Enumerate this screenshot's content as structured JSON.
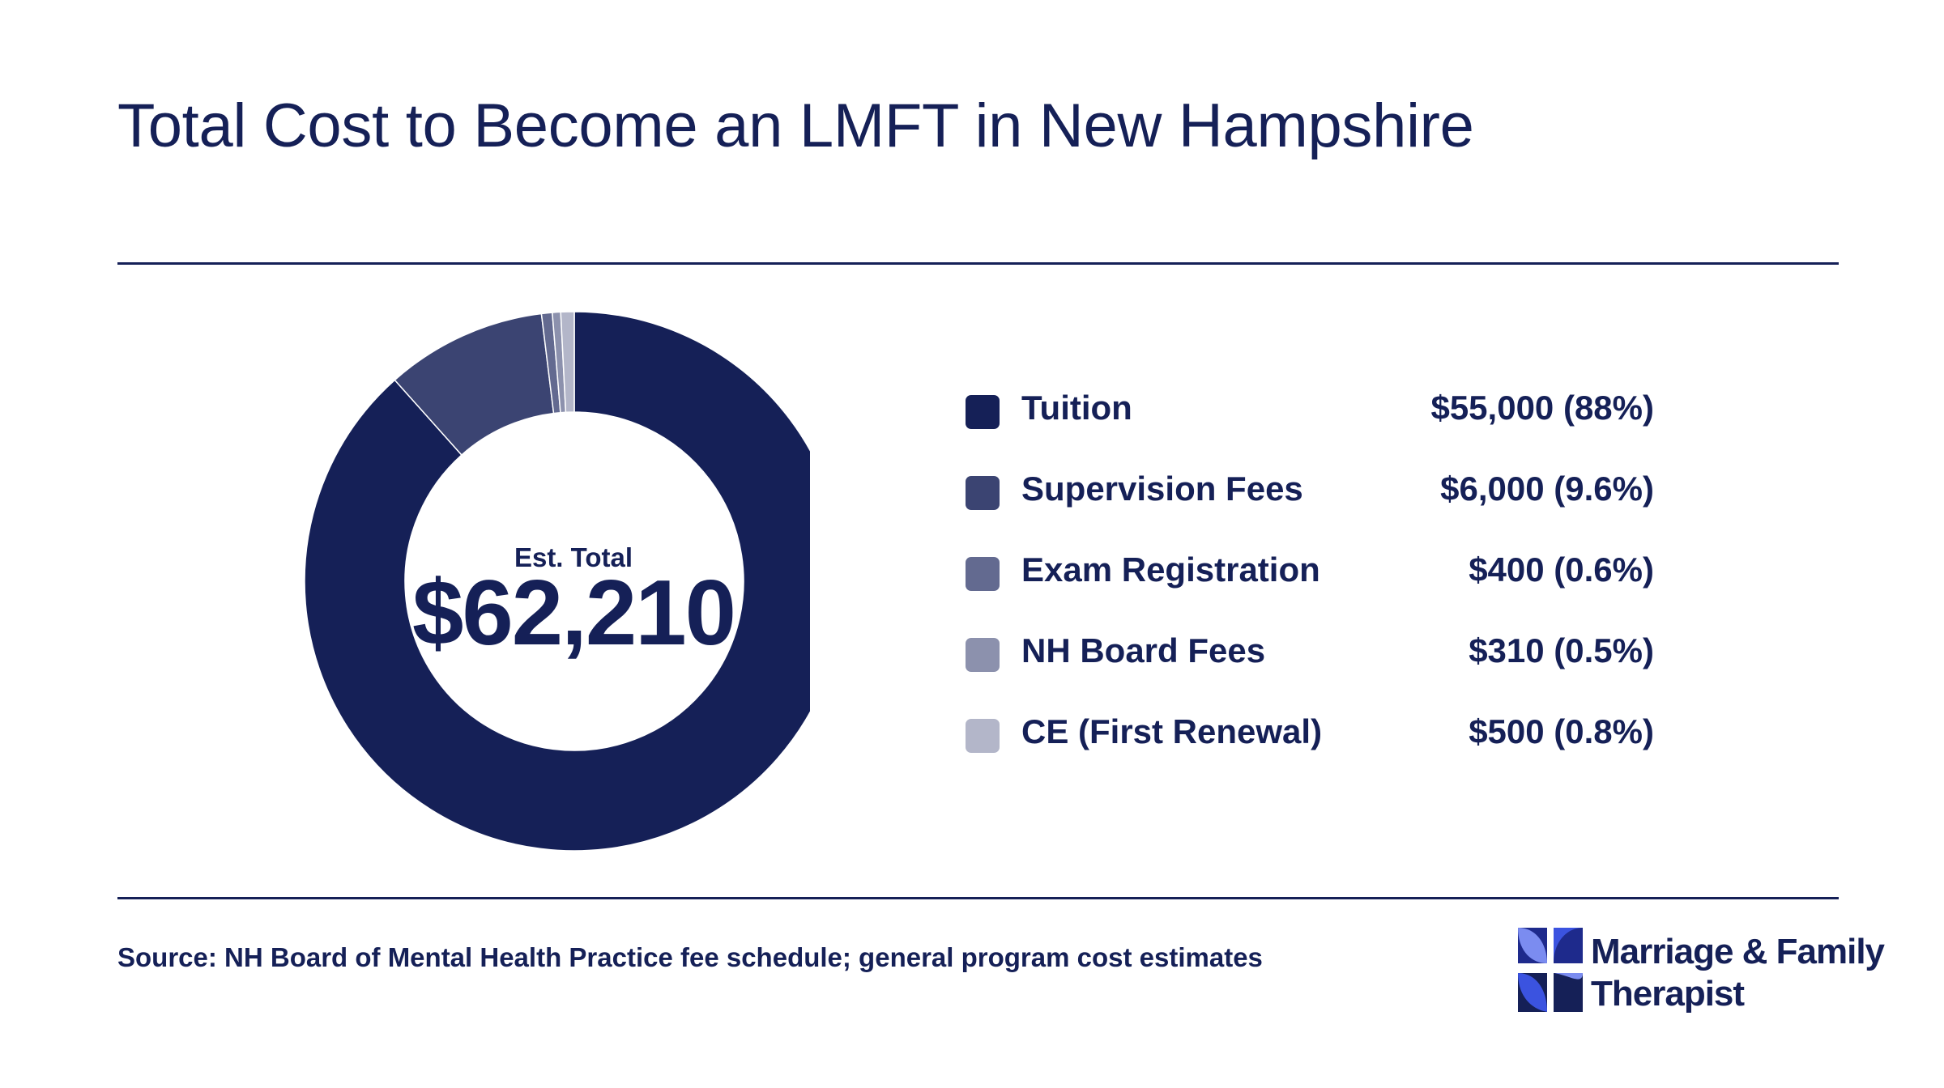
{
  "title": "Total Cost to Become an LMFT in New Hampshire",
  "center": {
    "sub": "Est. Total",
    "value": "$62,210"
  },
  "chart_data": {
    "type": "pie",
    "title": "Total Cost to Become an LMFT in New Hampshire",
    "donut": true,
    "center_label": "Est. Total",
    "center_value": "$62,210",
    "categories": [
      "Tuition",
      "Supervision Fees",
      "Exam Registration",
      "NH Board Fees",
      "CE (First Renewal)"
    ],
    "values": [
      55000,
      6000,
      400,
      310,
      500
    ],
    "value_labels": [
      "$55,000 (88%)",
      "$6,000 (9.6%)",
      "$400 (0.6%)",
      "$310 (0.5%)",
      "$500 (0.8%)"
    ],
    "colors": [
      "#152057",
      "#3b4472",
      "#636a90",
      "#8c91ad",
      "#b3b6c9"
    ],
    "legend_placement": "right"
  },
  "source": "Source: NH Board of Mental Health Practice fee schedule; general program cost estimates",
  "logo": {
    "line1": "Marriage & Family",
    "line2": "Therapist"
  }
}
